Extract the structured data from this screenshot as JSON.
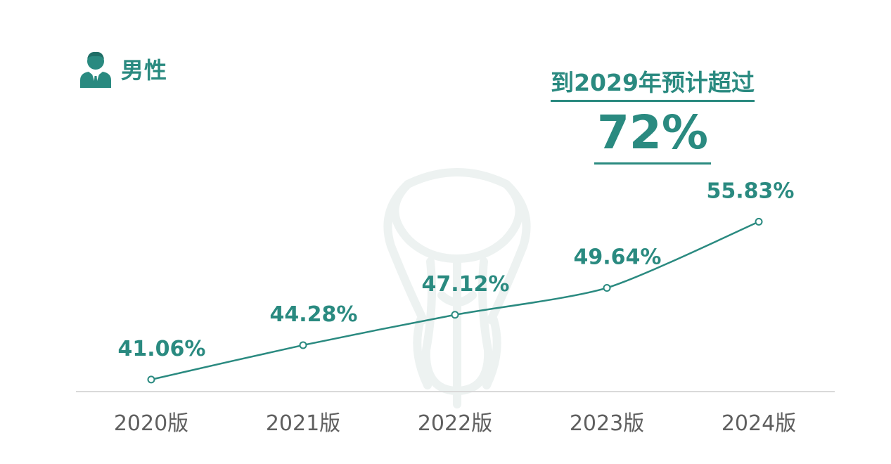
{
  "header": {
    "title": "男性",
    "icon": "person-suit-icon"
  },
  "callout": {
    "text": "到2029年预计超过",
    "value": "72%"
  },
  "colors": {
    "accent": "#2a8a80",
    "axis": "#d9d9d9",
    "tick_text": "#5f5f5f",
    "watermark": "#edf2f1"
  },
  "chart_data": {
    "type": "line",
    "categories": [
      "2020版",
      "2021版",
      "2022版",
      "2023版",
      "2024版"
    ],
    "values": [
      41.06,
      44.28,
      47.12,
      49.64,
      55.83
    ],
    "data_labels": [
      "41.06%",
      "44.28%",
      "47.12%",
      "49.64%",
      "55.83%"
    ],
    "ylim": [
      20,
      60
    ],
    "grid": false,
    "title": "",
    "xlabel": "",
    "ylabel": ""
  }
}
